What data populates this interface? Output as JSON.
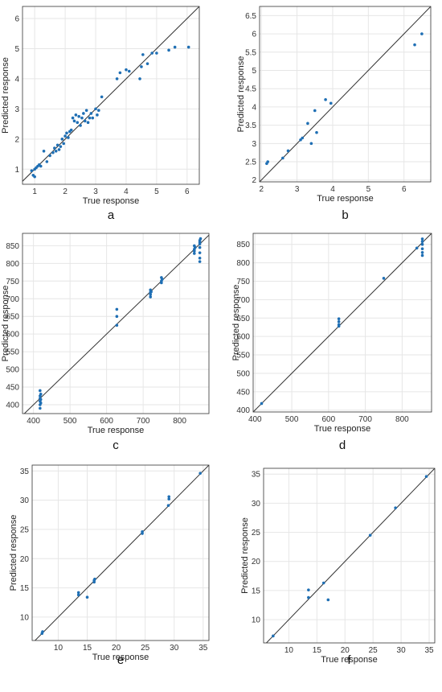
{
  "chart_data": [
    {
      "panel": "a",
      "type": "scatter",
      "xlabel": "True response",
      "ylabel": "Predicted response",
      "xlim": [
        0.6,
        6.4
      ],
      "ylim": [
        0.5,
        6.4
      ],
      "xticks": [
        1,
        2,
        3,
        4,
        5,
        6
      ],
      "yticks": [
        1,
        2,
        3,
        4,
        5,
        6
      ],
      "grid": true,
      "reference_line": "y = x",
      "points": [
        [
          0.9,
          0.95
        ],
        [
          0.95,
          0.8
        ],
        [
          1.0,
          1.0
        ],
        [
          1.05,
          1.05
        ],
        [
          1.1,
          1.1
        ],
        [
          1.0,
          0.75
        ],
        [
          1.15,
          1.15
        ],
        [
          1.2,
          1.1
        ],
        [
          1.3,
          1.6
        ],
        [
          1.4,
          1.25
        ],
        [
          1.5,
          1.45
        ],
        [
          1.6,
          1.55
        ],
        [
          1.65,
          1.7
        ],
        [
          1.7,
          1.6
        ],
        [
          1.75,
          1.8
        ],
        [
          1.8,
          1.65
        ],
        [
          1.85,
          1.75
        ],
        [
          1.9,
          2.0
        ],
        [
          1.95,
          1.85
        ],
        [
          2.0,
          2.1
        ],
        [
          2.05,
          2.2
        ],
        [
          2.1,
          2.05
        ],
        [
          2.15,
          2.25
        ],
        [
          2.2,
          2.3
        ],
        [
          2.25,
          2.7
        ],
        [
          2.3,
          2.6
        ],
        [
          2.35,
          2.8
        ],
        [
          2.4,
          2.55
        ],
        [
          2.45,
          2.75
        ],
        [
          2.5,
          2.45
        ],
        [
          2.55,
          2.7
        ],
        [
          2.6,
          2.85
        ],
        [
          2.65,
          2.6
        ],
        [
          2.7,
          2.95
        ],
        [
          2.75,
          2.55
        ],
        [
          2.8,
          2.7
        ],
        [
          2.85,
          2.85
        ],
        [
          2.9,
          2.7
        ],
        [
          3.0,
          3.0
        ],
        [
          3.05,
          2.8
        ],
        [
          3.1,
          2.95
        ],
        [
          3.2,
          3.4
        ],
        [
          3.7,
          4.0
        ],
        [
          3.8,
          4.2
        ],
        [
          4.0,
          4.3
        ],
        [
          4.1,
          4.25
        ],
        [
          4.45,
          4.0
        ],
        [
          4.5,
          4.4
        ],
        [
          4.55,
          4.8
        ],
        [
          4.7,
          4.5
        ],
        [
          4.85,
          4.85
        ],
        [
          5.0,
          4.85
        ],
        [
          5.4,
          4.95
        ],
        [
          5.6,
          5.05
        ],
        [
          6.05,
          5.05
        ]
      ]
    },
    {
      "panel": "b",
      "type": "scatter",
      "xlabel": "True response",
      "ylabel": "Predicted response",
      "xlim": [
        1.95,
        6.75
      ],
      "ylim": [
        1.95,
        6.75
      ],
      "xticks": [
        2,
        3,
        4,
        5,
        6
      ],
      "yticks": [
        2,
        2.5,
        3,
        3.5,
        4,
        4.5,
        5,
        5.5,
        6,
        6.5
      ],
      "grid": true,
      "reference_line": "y = x",
      "points": [
        [
          2.15,
          2.45
        ],
        [
          2.18,
          2.5
        ],
        [
          2.6,
          2.6
        ],
        [
          2.75,
          2.8
        ],
        [
          3.1,
          3.1
        ],
        [
          3.15,
          3.15
        ],
        [
          3.3,
          3.55
        ],
        [
          3.4,
          3.0
        ],
        [
          3.5,
          3.9
        ],
        [
          3.55,
          3.3
        ],
        [
          3.8,
          4.2
        ],
        [
          3.95,
          4.1
        ],
        [
          6.3,
          5.7
        ],
        [
          6.5,
          6.0
        ]
      ]
    },
    {
      "panel": "c",
      "type": "scatter",
      "xlabel": "True response",
      "ylabel": "Predicted response",
      "xlim": [
        370,
        880
      ],
      "ylim": [
        375,
        885
      ],
      "xticks": [
        400,
        500,
        600,
        700,
        800
      ],
      "yticks": [
        400,
        450,
        500,
        550,
        600,
        650,
        700,
        750,
        800,
        850
      ],
      "grid": true,
      "reference_line": "y = x",
      "points": [
        [
          418,
          440
        ],
        [
          418,
          425
        ],
        [
          418,
          418
        ],
        [
          418,
          410
        ],
        [
          418,
          400
        ],
        [
          418,
          390
        ],
        [
          420,
          430
        ],
        [
          420,
          415
        ],
        [
          420,
          405
        ],
        [
          628,
          670
        ],
        [
          628,
          650
        ],
        [
          628,
          625
        ],
        [
          720,
          725
        ],
        [
          720,
          718
        ],
        [
          720,
          712
        ],
        [
          720,
          705
        ],
        [
          722,
          720
        ],
        [
          750,
          760
        ],
        [
          750,
          750
        ],
        [
          750,
          745
        ],
        [
          752,
          755
        ],
        [
          840,
          850
        ],
        [
          840,
          840
        ],
        [
          840,
          835
        ],
        [
          840,
          828
        ],
        [
          842,
          845
        ],
        [
          855,
          865
        ],
        [
          855,
          860
        ],
        [
          855,
          855
        ],
        [
          855,
          845
        ],
        [
          855,
          830
        ],
        [
          855,
          815
        ],
        [
          855,
          805
        ],
        [
          857,
          870
        ]
      ]
    },
    {
      "panel": "d",
      "type": "scatter",
      "xlabel": "True response",
      "ylabel": "Predicted response",
      "xlim": [
        395,
        880
      ],
      "ylim": [
        395,
        880
      ],
      "xticks": [
        400,
        500,
        600,
        700,
        800
      ],
      "yticks": [
        400,
        450,
        500,
        550,
        600,
        650,
        700,
        750,
        800,
        850
      ],
      "grid": true,
      "reference_line": "y = x",
      "points": [
        [
          418,
          418
        ],
        [
          628,
          648
        ],
        [
          628,
          640
        ],
        [
          628,
          632
        ],
        [
          628,
          628
        ],
        [
          750,
          758
        ],
        [
          840,
          840
        ],
        [
          855,
          865
        ],
        [
          855,
          858
        ],
        [
          855,
          850
        ],
        [
          855,
          838
        ],
        [
          855,
          828
        ],
        [
          855,
          820
        ]
      ]
    },
    {
      "panel": "e",
      "type": "scatter",
      "xlabel": "True response",
      "ylabel": "Predicted response",
      "xlim": [
        5.5,
        36
      ],
      "ylim": [
        6,
        36
      ],
      "xticks": [
        10,
        15,
        20,
        25,
        30,
        35
      ],
      "yticks": [
        10,
        15,
        20,
        25,
        30,
        35
      ],
      "grid": true,
      "reference_line": "y = x",
      "points": [
        [
          7.2,
          7.2
        ],
        [
          7.3,
          7.5
        ],
        [
          13.5,
          13.8
        ],
        [
          13.5,
          14.2
        ],
        [
          15.0,
          13.4
        ],
        [
          16.2,
          16.0
        ],
        [
          16.2,
          16.3
        ],
        [
          16.3,
          16.5
        ],
        [
          24.5,
          24.3
        ],
        [
          24.5,
          24.6
        ],
        [
          29.0,
          29.1
        ],
        [
          29.1,
          30.2
        ],
        [
          29.1,
          30.6
        ],
        [
          34.5,
          34.6
        ]
      ]
    },
    {
      "panel": "f",
      "type": "scatter",
      "xlabel": "True response",
      "ylabel": "Predicted response",
      "xlim": [
        5.5,
        36
      ],
      "ylim": [
        6,
        36
      ],
      "xticks": [
        10,
        15,
        20,
        25,
        30,
        35
      ],
      "yticks": [
        10,
        15,
        20,
        25,
        30,
        35
      ],
      "grid": true,
      "reference_line": "y = x",
      "points": [
        [
          7.2,
          7.2
        ],
        [
          13.5,
          13.8
        ],
        [
          13.5,
          15.1
        ],
        [
          16.2,
          16.3
        ],
        [
          17.0,
          13.4
        ],
        [
          24.5,
          24.5
        ],
        [
          29.0,
          29.2
        ],
        [
          34.5,
          34.6
        ]
      ]
    }
  ]
}
